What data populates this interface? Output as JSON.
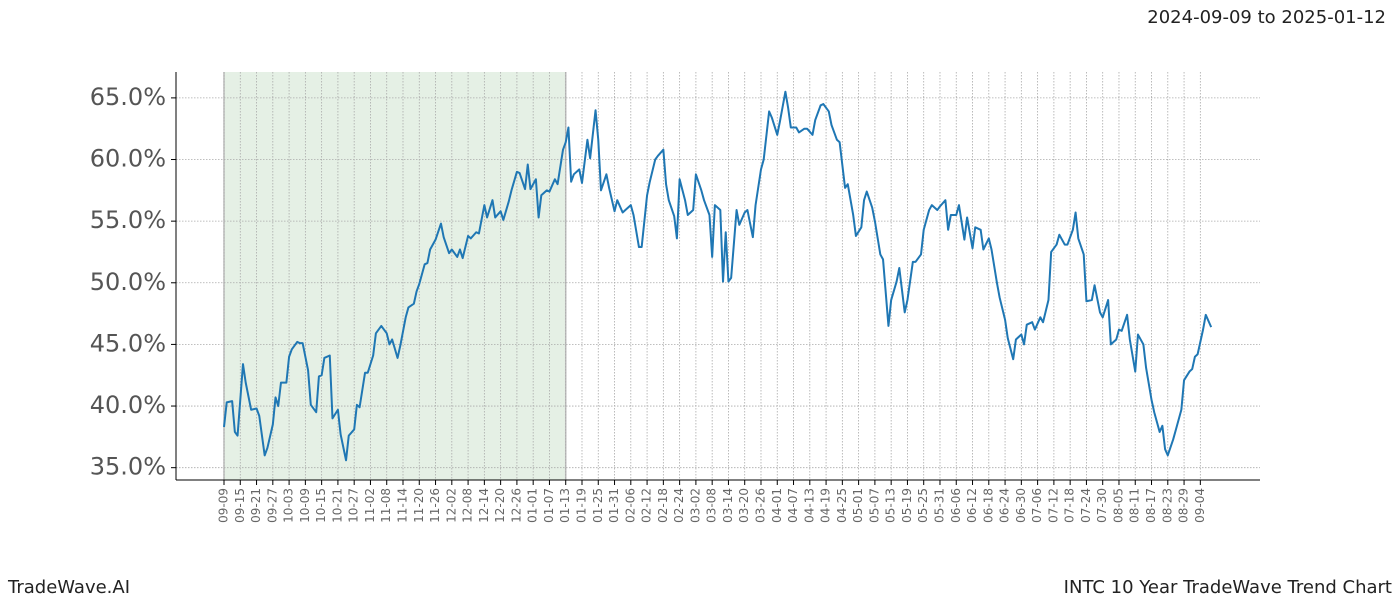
{
  "chart_data": {
    "type": "line",
    "title": "INTC 10 Year TradeWave Trend Chart",
    "subtitle": "2024-09-09 to 2025-01-12",
    "brand": "TradeWave.AI",
    "color": "#1f77b4",
    "shade_x": [
      0,
      126
    ],
    "shade_color": "#e5f0e5",
    "grid": true,
    "xlim": [
      -17.7,
      382
    ],
    "ylim": [
      34.0,
      67.1
    ],
    "yticks": [
      {
        "value": 35,
        "label": "35.0%"
      },
      {
        "value": 40,
        "label": "40.0%"
      },
      {
        "value": 45,
        "label": "45.0%"
      },
      {
        "value": 50,
        "label": "50.0%"
      },
      {
        "value": 55,
        "label": "55.0%"
      },
      {
        "value": 60,
        "label": "60.0%"
      },
      {
        "value": 65,
        "label": "65.0%"
      }
    ],
    "xticks": [
      {
        "value": 0,
        "label": "09-09"
      },
      {
        "value": 6,
        "label": "09-15"
      },
      {
        "value": 12,
        "label": "09-21"
      },
      {
        "value": 18,
        "label": "09-27"
      },
      {
        "value": 24,
        "label": "10-03"
      },
      {
        "value": 30,
        "label": "10-09"
      },
      {
        "value": 36,
        "label": "10-15"
      },
      {
        "value": 42,
        "label": "10-21"
      },
      {
        "value": 48,
        "label": "10-27"
      },
      {
        "value": 54,
        "label": "11-02"
      },
      {
        "value": 60,
        "label": "11-08"
      },
      {
        "value": 66,
        "label": "11-14"
      },
      {
        "value": 72,
        "label": "11-20"
      },
      {
        "value": 78,
        "label": "11-26"
      },
      {
        "value": 84,
        "label": "12-02"
      },
      {
        "value": 90,
        "label": "12-08"
      },
      {
        "value": 96,
        "label": "12-14"
      },
      {
        "value": 102,
        "label": "12-20"
      },
      {
        "value": 108,
        "label": "12-26"
      },
      {
        "value": 114,
        "label": "01-01"
      },
      {
        "value": 120,
        "label": "01-07"
      },
      {
        "value": 126,
        "label": "01-13"
      },
      {
        "value": 132,
        "label": "01-19"
      },
      {
        "value": 138,
        "label": "01-25"
      },
      {
        "value": 144,
        "label": "01-31"
      },
      {
        "value": 150,
        "label": "02-06"
      },
      {
        "value": 156,
        "label": "02-12"
      },
      {
        "value": 162,
        "label": "02-18"
      },
      {
        "value": 168,
        "label": "02-24"
      },
      {
        "value": 174,
        "label": "03-02"
      },
      {
        "value": 180,
        "label": "03-08"
      },
      {
        "value": 186,
        "label": "03-14"
      },
      {
        "value": 192,
        "label": "03-20"
      },
      {
        "value": 198,
        "label": "03-26"
      },
      {
        "value": 204,
        "label": "04-01"
      },
      {
        "value": 210,
        "label": "04-07"
      },
      {
        "value": 216,
        "label": "04-13"
      },
      {
        "value": 222,
        "label": "04-19"
      },
      {
        "value": 228,
        "label": "04-25"
      },
      {
        "value": 234,
        "label": "05-01"
      },
      {
        "value": 240,
        "label": "05-07"
      },
      {
        "value": 246,
        "label": "05-13"
      },
      {
        "value": 252,
        "label": "05-19"
      },
      {
        "value": 258,
        "label": "05-25"
      },
      {
        "value": 264,
        "label": "05-31"
      },
      {
        "value": 270,
        "label": "06-06"
      },
      {
        "value": 276,
        "label": "06-12"
      },
      {
        "value": 282,
        "label": "06-18"
      },
      {
        "value": 288,
        "label": "06-24"
      },
      {
        "value": 294,
        "label": "06-30"
      },
      {
        "value": 300,
        "label": "07-06"
      },
      {
        "value": 306,
        "label": "07-12"
      },
      {
        "value": 312,
        "label": "07-18"
      },
      {
        "value": 318,
        "label": "07-24"
      },
      {
        "value": 324,
        "label": "07-30"
      },
      {
        "value": 330,
        "label": "08-05"
      },
      {
        "value": 336,
        "label": "08-11"
      },
      {
        "value": 342,
        "label": "08-17"
      },
      {
        "value": 348,
        "label": "08-23"
      },
      {
        "value": 354,
        "label": "08-29"
      },
      {
        "value": 360,
        "label": "09-04"
      }
    ],
    "x": [
      0,
      1,
      3,
      4,
      5,
      7,
      8,
      10,
      12,
      13,
      15,
      16,
      18,
      19,
      20,
      21,
      23,
      24,
      25,
      27,
      28,
      29,
      31,
      32,
      34,
      35,
      36,
      37,
      39,
      40,
      42,
      43,
      45,
      46,
      48,
      49,
      50,
      52,
      53,
      55,
      56,
      58,
      60,
      61,
      62,
      64,
      65,
      67,
      68,
      70,
      71,
      72,
      74,
      75,
      76,
      78,
      80,
      81,
      83,
      84,
      86,
      87,
      88,
      90,
      91,
      93,
      94,
      96,
      97,
      99,
      100,
      102,
      103,
      105,
      106,
      108,
      109,
      111,
      112,
      113,
      115,
      116,
      117,
      119,
      120,
      122,
      123,
      125,
      126,
      127,
      128,
      129,
      131,
      132,
      134,
      135,
      137,
      138,
      139,
      141,
      142,
      144,
      145,
      147,
      148,
      150,
      151,
      153,
      154,
      156,
      157,
      159,
      160,
      162,
      163,
      164,
      166,
      167,
      168,
      170,
      171,
      173,
      174,
      176,
      177,
      179,
      180,
      181,
      183,
      184,
      185,
      186,
      187,
      189,
      190,
      192,
      193,
      195,
      196,
      198,
      199,
      201,
      202,
      204,
      205,
      207,
      208,
      209,
      211,
      212,
      214,
      215,
      217,
      218,
      220,
      221,
      223,
      224,
      226,
      227,
      229,
      230,
      232,
      233,
      235,
      236,
      237,
      239,
      240,
      242,
      243,
      245,
      246,
      248,
      249,
      251,
      252,
      254,
      255,
      257,
      258,
      260,
      261,
      263,
      264,
      266,
      267,
      268,
      270,
      271,
      273,
      274,
      276,
      277,
      279,
      280,
      282,
      283,
      285,
      286,
      288,
      289,
      291,
      292,
      294,
      295,
      296,
      298,
      299,
      301,
      302,
      304,
      305,
      307,
      308,
      310,
      311,
      313,
      314,
      315,
      317,
      318,
      320,
      321,
      323,
      324,
      326,
      327,
      329,
      330,
      331,
      333,
      334,
      336,
      337,
      339,
      340,
      342,
      343,
      345,
      346,
      347,
      348,
      350,
      351,
      353,
      354,
      356,
      357,
      358,
      359,
      361,
      362,
      364
    ],
    "values": [
      38.3,
      40.3,
      40.4,
      37.9,
      37.6,
      43.4,
      41.9,
      39.7,
      39.8,
      39.2,
      36.0,
      36.6,
      38.5,
      40.7,
      40.0,
      41.9,
      41.9,
      44.0,
      44.6,
      45.2,
      45.1,
      45.1,
      42.9,
      40.1,
      39.5,
      42.4,
      42.5,
      43.9,
      44.1,
      39.0,
      39.7,
      37.7,
      35.6,
      37.6,
      38.1,
      40.1,
      39.9,
      42.7,
      42.7,
      44.1,
      45.9,
      46.5,
      45.9,
      45.0,
      45.4,
      43.9,
      44.9,
      47.2,
      48.0,
      48.3,
      49.3,
      49.9,
      51.5,
      51.6,
      52.7,
      53.5,
      54.8,
      53.7,
      52.4,
      52.7,
      52.1,
      52.7,
      52.0,
      53.8,
      53.6,
      54.1,
      54.0,
      56.3,
      55.3,
      56.7,
      55.3,
      55.8,
      55.1,
      56.6,
      57.5,
      59.0,
      58.9,
      57.6,
      59.6,
      57.6,
      58.4,
      55.3,
      57.1,
      57.5,
      57.4,
      58.4,
      58.0,
      60.8,
      61.4,
      62.6,
      58.2,
      58.8,
      59.2,
      58.1,
      61.6,
      60.1,
      64.0,
      61.6,
      57.5,
      58.8,
      57.7,
      55.8,
      56.7,
      55.7,
      55.9,
      56.3,
      55.5,
      52.9,
      52.9,
      57.1,
      58.2,
      60.0,
      60.3,
      60.8,
      58.0,
      56.7,
      55.4,
      53.6,
      58.4,
      56.7,
      55.5,
      55.9,
      58.8,
      57.5,
      56.7,
      55.5,
      52.1,
      56.3,
      55.9,
      50.1,
      54.1,
      50.1,
      50.4,
      55.9,
      54.7,
      55.7,
      55.9,
      53.7,
      56.3,
      59.2,
      60.0,
      63.9,
      63.4,
      62.0,
      63.1,
      65.5,
      64.2,
      62.6,
      62.6,
      62.2,
      62.5,
      62.5,
      62.0,
      63.2,
      64.4,
      64.5,
      63.9,
      62.8,
      61.6,
      61.4,
      57.7,
      58.0,
      55.5,
      53.8,
      54.5,
      56.7,
      57.4,
      56.1,
      55.0,
      52.3,
      51.9,
      46.5,
      48.6,
      50.1,
      51.2,
      47.6,
      48.6,
      51.7,
      51.7,
      52.3,
      54.3,
      55.9,
      56.3,
      55.9,
      56.2,
      56.7,
      54.3,
      55.5,
      55.5,
      56.3,
      53.5,
      55.3,
      52.8,
      54.5,
      54.3,
      52.7,
      53.6,
      52.7,
      50.0,
      48.8,
      47.0,
      45.5,
      43.8,
      45.4,
      45.8,
      45.0,
      46.6,
      46.8,
      46.2,
      47.2,
      46.8,
      48.6,
      52.5,
      53.1,
      53.9,
      53.1,
      53.1,
      54.3,
      55.7,
      53.6,
      52.3,
      48.5,
      48.6,
      49.8,
      47.6,
      47.2,
      48.6,
      45.0,
      45.4,
      46.2,
      46.1,
      47.4,
      45.4,
      42.8,
      45.8,
      45.0,
      43.1,
      40.5,
      39.5,
      37.9,
      38.4,
      36.5,
      36.0,
      37.3,
      38.1,
      39.7,
      42.1,
      42.8,
      43.0,
      44.0,
      44.2,
      46.2,
      47.4,
      46.4
    ]
  }
}
